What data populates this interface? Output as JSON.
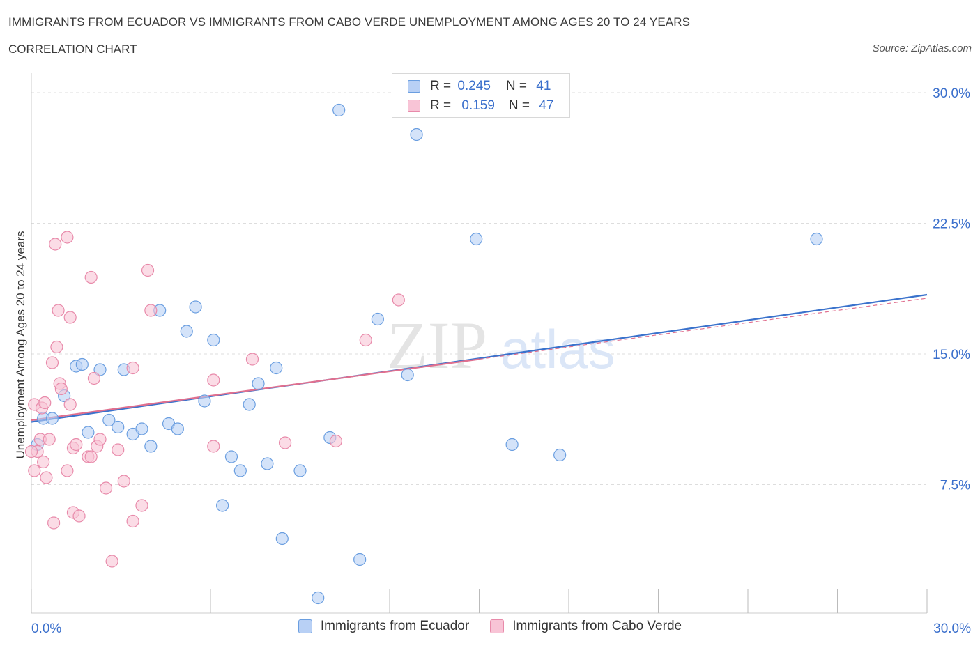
{
  "title": "IMMIGRANTS FROM ECUADOR VS IMMIGRANTS FROM CABO VERDE UNEMPLOYMENT AMONG AGES 20 TO 24 YEARS",
  "subtitle": "CORRELATION CHART",
  "source": "Source: ZipAtlas.com",
  "watermark": {
    "zip": "ZIP",
    "atlas": "atlas"
  },
  "colors": {
    "ecuador_fill": "#b8d0f5",
    "ecuador_stroke": "#6a9ee0",
    "ecuador_line": "#3a72cc",
    "caboverde_fill": "#f8c4d6",
    "caboverde_stroke": "#e88aaa",
    "caboverde_line": "#e0708f",
    "tick_label": "#3a6fcc",
    "grid": "#dddddd"
  },
  "legend_top": {
    "rows": [
      {
        "r_label": "R = ",
        "r_value": "0.245",
        "n_label": "N = ",
        "n_value": "41"
      },
      {
        "r_label": "R = ",
        "r_value": "0.159",
        "n_label": "N = ",
        "n_value": "47"
      }
    ]
  },
  "chart_data": {
    "type": "scatter",
    "xlabel": "",
    "ylabel": "Unemployment Among Ages 20 to 24 years",
    "xlim": [
      0,
      30
    ],
    "ylim": [
      0,
      30
    ],
    "x_tick_labels": [
      "0.0%",
      "30.0%"
    ],
    "y_ticks": [
      7.5,
      15.0,
      22.5,
      30.0
    ],
    "y_tick_labels": [
      "7.5%",
      "15.0%",
      "22.5%",
      "30.0%"
    ],
    "grid": "horizontal dashed",
    "legend_placement": "bottom-center",
    "series": [
      {
        "name": "Immigrants from Ecuador",
        "R": 0.245,
        "N": 41,
        "trend": {
          "x": [
            0,
            30
          ],
          "y": [
            11.1,
            18.4
          ]
        },
        "points": [
          [
            0.2,
            9.8
          ],
          [
            0.4,
            11.3
          ],
          [
            0.7,
            11.3
          ],
          [
            1.1,
            12.6
          ],
          [
            1.5,
            14.3
          ],
          [
            1.7,
            14.4
          ],
          [
            1.9,
            10.5
          ],
          [
            2.3,
            14.1
          ],
          [
            2.6,
            11.2
          ],
          [
            2.9,
            10.8
          ],
          [
            3.1,
            14.1
          ],
          [
            3.4,
            10.4
          ],
          [
            3.7,
            10.7
          ],
          [
            4.0,
            9.7
          ],
          [
            4.3,
            17.5
          ],
          [
            4.6,
            11.0
          ],
          [
            4.9,
            10.7
          ],
          [
            5.2,
            16.3
          ],
          [
            5.5,
            17.7
          ],
          [
            5.8,
            12.3
          ],
          [
            6.1,
            15.8
          ],
          [
            6.4,
            6.3
          ],
          [
            6.7,
            9.1
          ],
          [
            7.0,
            8.3
          ],
          [
            7.3,
            12.1
          ],
          [
            7.6,
            13.3
          ],
          [
            7.9,
            8.7
          ],
          [
            8.2,
            14.2
          ],
          [
            8.4,
            4.4
          ],
          [
            9.0,
            8.3
          ],
          [
            9.6,
            1.0
          ],
          [
            10.0,
            10.2
          ],
          [
            10.3,
            29.0
          ],
          [
            11.0,
            3.2
          ],
          [
            11.6,
            17.0
          ],
          [
            12.6,
            13.8
          ],
          [
            12.9,
            27.6
          ],
          [
            14.9,
            21.6
          ],
          [
            16.1,
            9.8
          ],
          [
            17.7,
            9.2
          ],
          [
            26.3,
            21.6
          ]
        ]
      },
      {
        "name": "Immigrants from Cabo Verde",
        "R": 0.159,
        "N": 47,
        "trend": {
          "x": [
            0,
            30
          ],
          "y": [
            11.2,
            18.2
          ]
        },
        "points": [
          [
            0.1,
            12.1
          ],
          [
            0.1,
            8.3
          ],
          [
            0.2,
            9.4
          ],
          [
            0.3,
            10.1
          ],
          [
            0.35,
            11.9
          ],
          [
            0.4,
            8.8
          ],
          [
            0.45,
            12.2
          ],
          [
            0.5,
            7.9
          ],
          [
            0.6,
            10.1
          ],
          [
            0.7,
            14.5
          ],
          [
            0.75,
            5.3
          ],
          [
            0.8,
            21.3
          ],
          [
            0.85,
            15.4
          ],
          [
            0.9,
            17.5
          ],
          [
            0.95,
            13.3
          ],
          [
            1.0,
            13.0
          ],
          [
            1.2,
            8.3
          ],
          [
            1.2,
            21.7
          ],
          [
            1.3,
            17.1
          ],
          [
            1.3,
            12.1
          ],
          [
            1.4,
            9.6
          ],
          [
            1.4,
            5.9
          ],
          [
            1.5,
            9.8
          ],
          [
            1.6,
            5.7
          ],
          [
            1.9,
            9.1
          ],
          [
            2.0,
            19.4
          ],
          [
            2.0,
            9.1
          ],
          [
            2.1,
            13.6
          ],
          [
            2.2,
            9.7
          ],
          [
            2.3,
            10.1
          ],
          [
            2.5,
            7.3
          ],
          [
            2.7,
            3.1
          ],
          [
            2.9,
            9.5
          ],
          [
            3.1,
            7.7
          ],
          [
            3.4,
            5.4
          ],
          [
            3.4,
            14.2
          ],
          [
            3.7,
            6.3
          ],
          [
            3.9,
            19.8
          ],
          [
            4.0,
            17.5
          ],
          [
            6.1,
            13.5
          ],
          [
            6.1,
            9.7
          ],
          [
            7.4,
            14.7
          ],
          [
            8.5,
            9.9
          ],
          [
            10.2,
            10.0
          ],
          [
            11.2,
            15.8
          ],
          [
            12.3,
            18.1
          ],
          [
            0.0,
            9.4
          ]
        ]
      }
    ]
  },
  "bottom_legend": [
    {
      "label": "Immigrants from Ecuador"
    },
    {
      "label": "Immigrants from Cabo Verde"
    }
  ]
}
